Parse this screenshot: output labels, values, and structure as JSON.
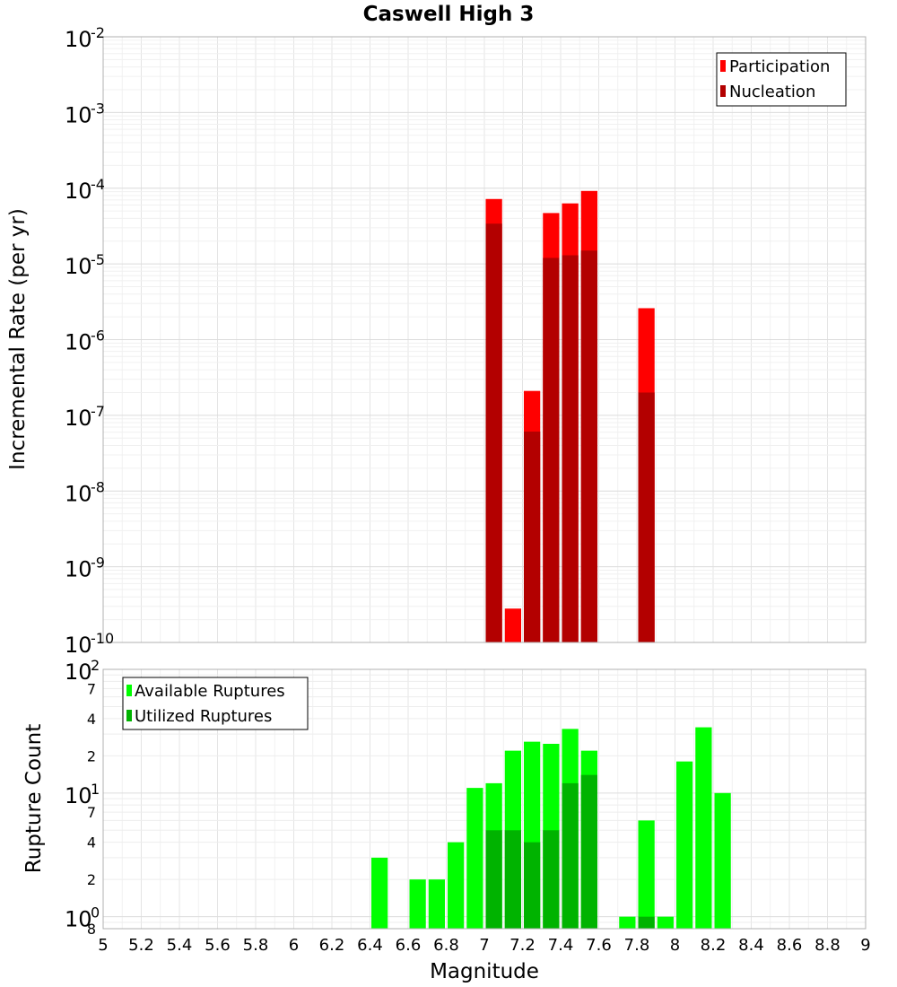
{
  "chart_data": [
    {
      "type": "bar",
      "title": "Caswell High 3",
      "ylabel": "Incremental Rate (per yr)",
      "xlabel": "",
      "xlim": [
        5,
        9
      ],
      "ylim": [
        1e-10,
        0.01
      ],
      "yscale": "log",
      "bin_width": 0.1,
      "legend": "top-right",
      "grid": true,
      "series": [
        {
          "name": "Participation",
          "color": "#ff0000",
          "x": [
            7.05,
            7.15,
            7.25,
            7.35,
            7.45,
            7.55,
            7.85
          ],
          "values": [
            7.2e-05,
            2.8e-10,
            2.1e-07,
            4.7e-05,
            6.3e-05,
            9.2e-05,
            2.6e-06
          ]
        },
        {
          "name": "Nucleation",
          "color": "#b30000",
          "x": [
            7.05,
            7.25,
            7.35,
            7.45,
            7.55,
            7.85
          ],
          "values": [
            3.4e-05,
            6.1e-08,
            1.2e-05,
            1.3e-05,
            1.5e-05,
            2e-07
          ]
        }
      ]
    },
    {
      "type": "bar",
      "title": "",
      "ylabel": "Rupture Count",
      "xlabel": "Magnitude",
      "xlim": [
        5,
        9
      ],
      "ylim": [
        0.8,
        100
      ],
      "yscale": "log",
      "bin_width": 0.1,
      "legend": "top-left",
      "grid": true,
      "series": [
        {
          "name": "Available Ruptures",
          "color": "#00ff00",
          "x": [
            6.45,
            6.65,
            6.75,
            6.85,
            6.95,
            7.05,
            7.15,
            7.25,
            7.35,
            7.45,
            7.55,
            7.75,
            7.85,
            7.95,
            8.05,
            8.15,
            8.25
          ],
          "values": [
            3,
            2,
            2,
            4,
            11,
            12,
            22,
            26,
            25,
            33,
            22,
            1,
            6,
            1,
            18,
            34,
            10
          ]
        },
        {
          "name": "Utilized Ruptures",
          "color": "#00b300",
          "x": [
            7.05,
            7.15,
            7.25,
            7.35,
            7.45,
            7.55,
            7.85
          ],
          "values": [
            5,
            5,
            4,
            5,
            12,
            14,
            1
          ]
        }
      ]
    }
  ],
  "x_ticks": [
    "5",
    "5.2",
    "5.4",
    "5.6",
    "5.8",
    "6",
    "6.2",
    "6.4",
    "6.6",
    "6.8",
    "7",
    "7.2",
    "7.4",
    "7.6",
    "7.8",
    "8",
    "8.2",
    "8.4",
    "8.6",
    "8.8",
    "9"
  ],
  "top_y_ticks": [
    {
      "base": "10",
      "exp": "-2"
    },
    {
      "base": "10",
      "exp": "-3"
    },
    {
      "base": "10",
      "exp": "-4"
    },
    {
      "base": "10",
      "exp": "-5"
    },
    {
      "base": "10",
      "exp": "-6"
    },
    {
      "base": "10",
      "exp": "-7"
    },
    {
      "base": "10",
      "exp": "-8"
    },
    {
      "base": "10",
      "exp": "-9"
    },
    {
      "base": "10",
      "exp": "-10"
    }
  ],
  "bottom_y_major": [
    {
      "base": "10",
      "exp": "2"
    },
    {
      "base": "10",
      "exp": "1"
    },
    {
      "base": "10",
      "exp": "0"
    }
  ],
  "bottom_y_minor": [
    "7",
    "4",
    "2",
    "7",
    "4",
    "2",
    "8"
  ]
}
